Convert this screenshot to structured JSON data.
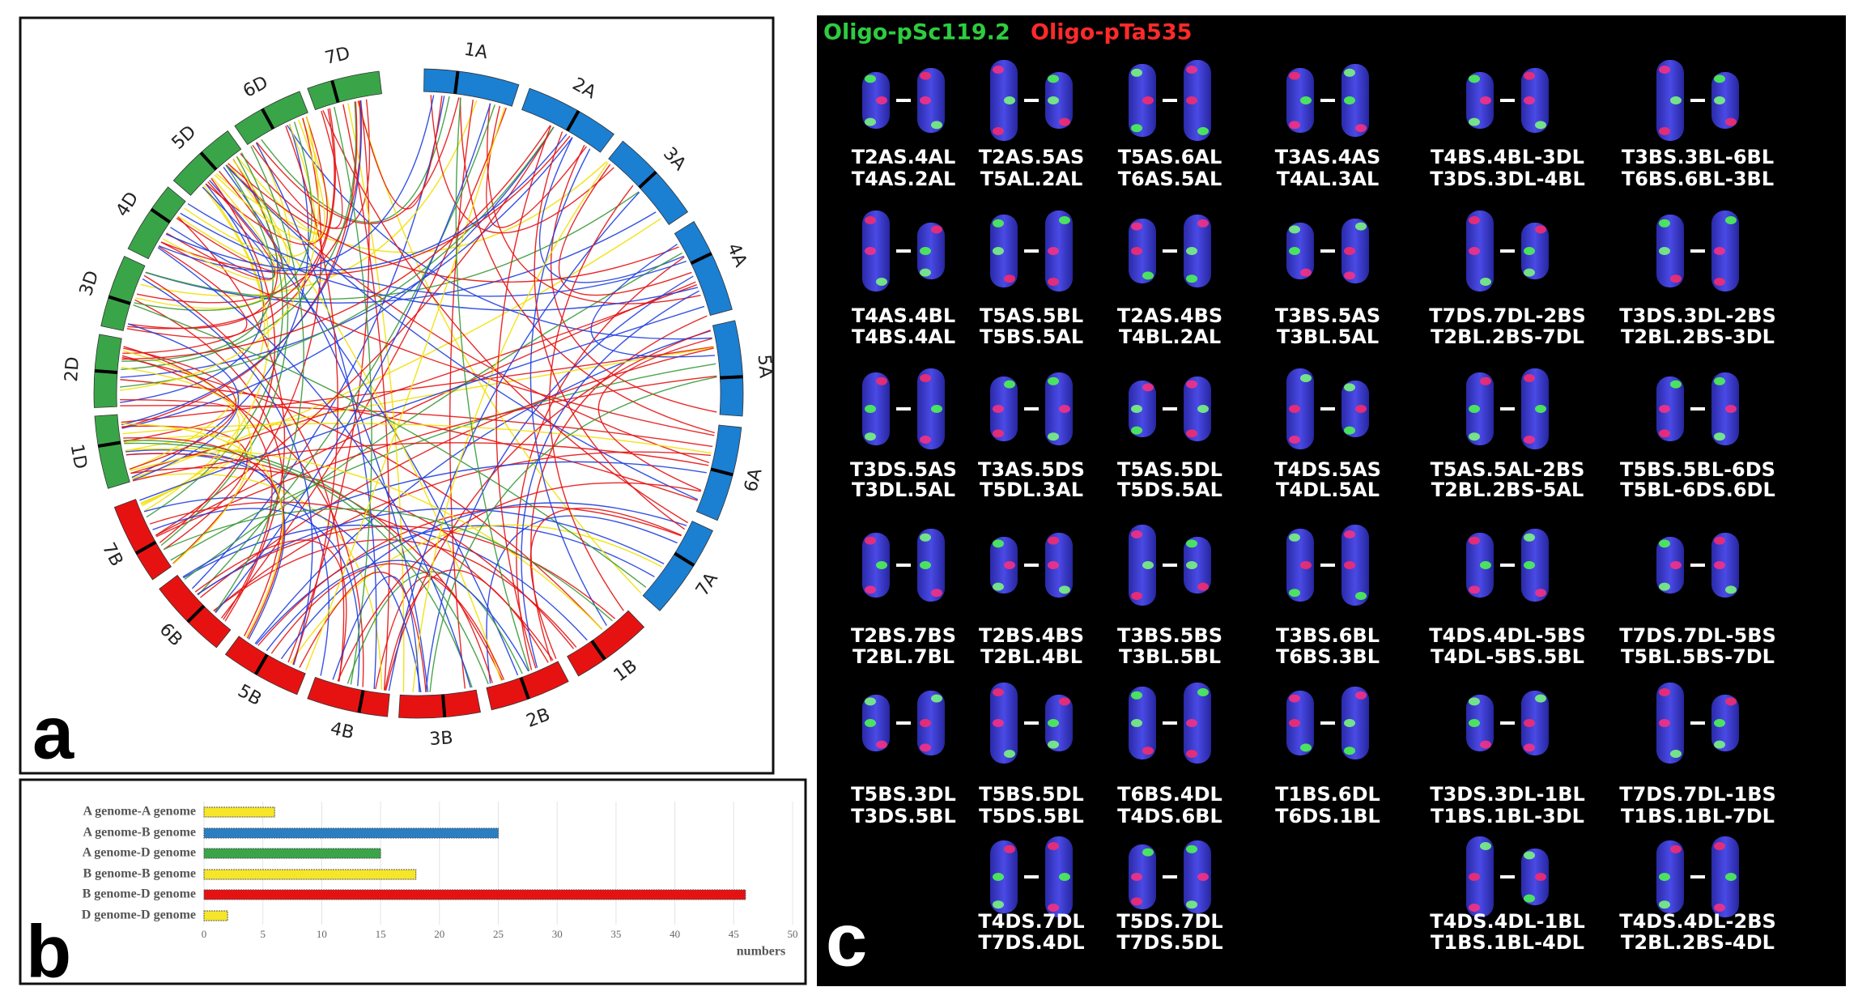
{
  "panel_labels": [
    "a",
    "b",
    "c"
  ],
  "circos": {
    "segments": [
      {
        "label": "1A",
        "color": "#1b7fd2"
      },
      {
        "label": "2A",
        "color": "#1b7fd2"
      },
      {
        "label": "3A",
        "color": "#1b7fd2"
      },
      {
        "label": "4A",
        "color": "#1b7fd2"
      },
      {
        "label": "5A",
        "color": "#1b7fd2"
      },
      {
        "label": "6A",
        "color": "#1b7fd2"
      },
      {
        "label": "7A",
        "color": "#1b7fd2"
      },
      {
        "label": "1B",
        "color": "#e61212"
      },
      {
        "label": "2B",
        "color": "#e61212"
      },
      {
        "label": "3B",
        "color": "#e61212"
      },
      {
        "label": "4B",
        "color": "#e61212"
      },
      {
        "label": "5B",
        "color": "#e61212"
      },
      {
        "label": "6B",
        "color": "#e61212"
      },
      {
        "label": "7B",
        "color": "#e61212"
      },
      {
        "label": "1D",
        "color": "#3aa548"
      },
      {
        "label": "2D",
        "color": "#3aa548"
      },
      {
        "label": "3D",
        "color": "#3aa548"
      },
      {
        "label": "4D",
        "color": "#3aa548"
      },
      {
        "label": "5D",
        "color": "#3aa548"
      },
      {
        "label": "6D",
        "color": "#3aa548"
      },
      {
        "label": "7D",
        "color": "#3aa548"
      }
    ]
  },
  "chart_data": {
    "type": "bar",
    "orientation": "horizontal",
    "categories": [
      "A genome-A genome",
      "A genome-B genome",
      "A genome-D genome",
      "B genome-B genome",
      "B genome-D genome",
      "D genome-D genome"
    ],
    "values": [
      6,
      25,
      15,
      18,
      46,
      2
    ],
    "colors": [
      "#f5e62a",
      "#2a7fc4",
      "#3aa548",
      "#f5e62a",
      "#e61212",
      "#f5e62a"
    ],
    "xlim": [
      0,
      50
    ],
    "xticks": [
      0,
      5,
      10,
      15,
      20,
      25,
      30,
      35,
      40,
      45,
      50
    ],
    "xlabel": "numbers",
    "grid": true
  },
  "karyotype": {
    "legend": [
      {
        "label": "Oligo-pSc119.2",
        "color": "#2ecc40"
      },
      {
        "label": "Oligo-pTa535",
        "color": "#ff2a2a"
      }
    ],
    "rows": [
      [
        [
          "T2AS.4AL",
          "T4AS.2AL"
        ],
        [
          "T2AS.5AS",
          "T5AL.2AL"
        ],
        [
          "T5AS.6AL",
          "T6AS.5AL"
        ],
        [
          "T3AS.4AS",
          "T4AL.3AL"
        ],
        [
          "T4BS.4BL-3DL",
          "T3DS.3DL-4BL"
        ],
        [
          "T3BS.3BL-6BL",
          "T6BS.6BL-3BL"
        ]
      ],
      [
        [
          "T4AS.4BL",
          "T4BS.4AL"
        ],
        [
          "T5AS.5BL",
          "T5BS.5AL"
        ],
        [
          "T2AS.4BS",
          "T4BL.2AL"
        ],
        [
          "T3BS.5AS",
          "T3BL.5AL"
        ],
        [
          "T7DS.7DL-2BS",
          "T2BL.2BS-7DL"
        ],
        [
          "T3DS.3DL-2BS",
          "T2BL.2BS-3DL"
        ]
      ],
      [
        [
          "T3DS.5AS",
          "T3DL.5AL"
        ],
        [
          "T3AS.5DS",
          "T5DL.3AL"
        ],
        [
          "T5AS.5DL",
          "T5DS.5AL"
        ],
        [
          "T4DS.5AS",
          "T4DL.5AL"
        ],
        [
          "T5AS.5AL-2BS",
          "T2BL.2BS-5AL"
        ],
        [
          "T5BS.5BL-6DS",
          "T5BL-6DS.6DL"
        ]
      ],
      [
        [
          "T2BS.7BS",
          "T2BL.7BL"
        ],
        [
          "T2BS.4BS",
          "T2BL.4BL"
        ],
        [
          "T3BS.5BS",
          "T3BL.5BL"
        ],
        [
          "T3BS.6BL",
          "T6BS.3BL"
        ],
        [
          "T4DS.4DL-5BS",
          "T4DL-5BS.5BL"
        ],
        [
          "T7DS.7DL-5BS",
          "T5BL.5BS-7DL"
        ]
      ],
      [
        [
          "T5BS.3DL",
          "T3DS.5BL"
        ],
        [
          "T5BS.5DL",
          "T5DS.5BL"
        ],
        [
          "T6BS.4DL",
          "T4DS.6BL"
        ],
        [
          "T1BS.6DL",
          "T6DS.1BL"
        ],
        [
          "T3DS.3DL-1BL",
          "T1BS.1BL-3DL"
        ],
        [
          "T7DS.7DL-1BS",
          "T1BS.1BL-7DL"
        ]
      ],
      [
        null,
        [
          "T4DS.7DL",
          "T7DS.4DL"
        ],
        [
          "T5DS.7DL",
          "T7DS.5DL"
        ],
        null,
        [
          "T4DS.4DL-1BL",
          "T1BS.1BL-4DL"
        ],
        [
          "T4DS.4DL-2BS",
          "T2BL.2BS-4DL"
        ]
      ]
    ]
  }
}
